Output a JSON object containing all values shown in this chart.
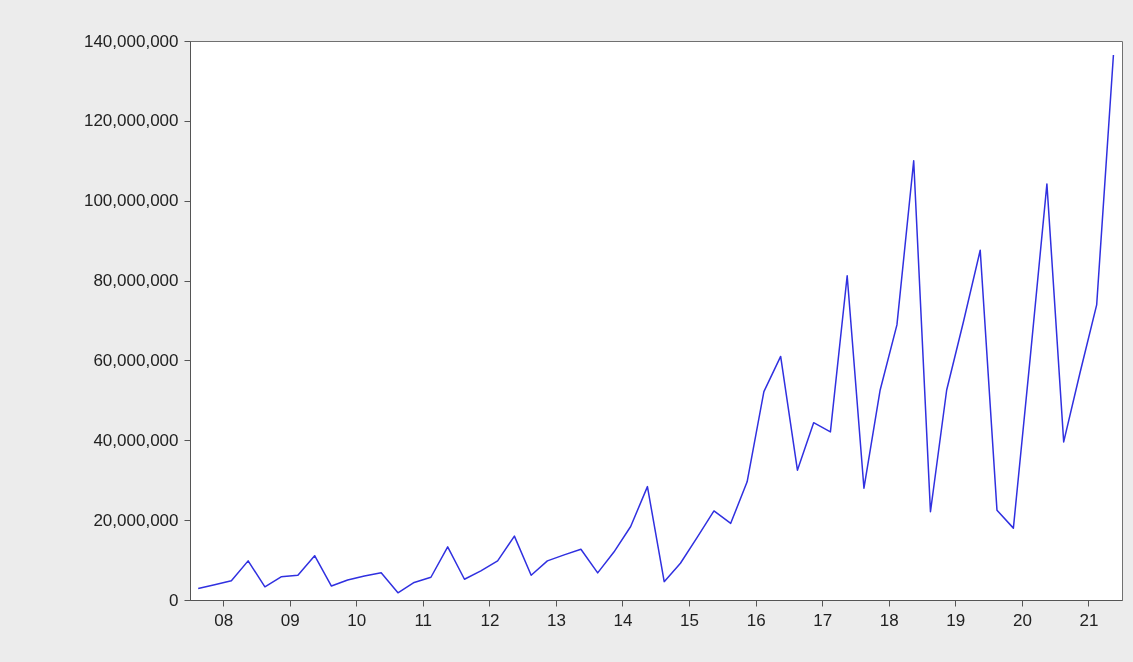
{
  "chart_data": {
    "type": "line",
    "x": [
      "2008-02-15",
      "2008-05-15",
      "2008-08-15",
      "2008-11-15",
      "2009-02-15",
      "2009-05-15",
      "2009-08-15",
      "2009-11-15",
      "2010-02-15",
      "2010-05-15",
      "2010-08-15",
      "2010-11-15",
      "2011-02-15",
      "2011-05-15",
      "2011-08-15",
      "2011-11-15",
      "2012-02-15",
      "2012-05-15",
      "2012-08-15",
      "2012-11-15",
      "2013-02-15",
      "2013-05-15",
      "2013-08-15",
      "2013-11-15",
      "2014-02-15",
      "2014-05-15",
      "2014-08-15",
      "2014-11-15",
      "2015-02-15",
      "2015-05-15",
      "2015-08-15",
      "2015-11-15",
      "2016-02-15",
      "2016-05-15",
      "2016-08-15",
      "2016-11-15",
      "2017-02-15",
      "2017-05-15",
      "2017-08-15",
      "2017-11-15",
      "2018-02-15",
      "2018-05-15",
      "2018-08-15",
      "2018-11-15",
      "2019-02-15",
      "2019-05-15",
      "2019-08-15",
      "2019-11-15",
      "2020-02-15",
      "2020-05-15",
      "2020-08-15",
      "2020-11-15",
      "2021-02-15",
      "2021-05-15",
      "2021-08-15",
      "2021-11-15"
    ],
    "series": [
      {
        "color": "#3030e0",
        "values": [
          2900000,
          3800000,
          4800000,
          9800000,
          3300000,
          5800000,
          6200000,
          11100000,
          3500000,
          5000000,
          6000000,
          6800000,
          1800000,
          4400000,
          5700000,
          13300000,
          5200000,
          7300000,
          9800000,
          16000000,
          6200000,
          9800000,
          11300000,
          12700000,
          6800000,
          12000000,
          18400000,
          28400000,
          4600000,
          9200000,
          15700000,
          22300000,
          19200000,
          29600000,
          52200000,
          61000000,
          32500000,
          44400000,
          42100000,
          81200000,
          28000000,
          52600000,
          68900000,
          110000000,
          22100000,
          52600000,
          69700000,
          87600000,
          22500000,
          18000000,
          60500000,
          104200000,
          39600000,
          56800000,
          73900000,
          136500000
        ]
      }
    ],
    "xlim": [
      "2008-01-01",
      "2022-01-01"
    ],
    "xticks": [
      {
        "value": "2008-07",
        "label": "08"
      },
      {
        "value": "2009-07",
        "label": "09"
      },
      {
        "value": "2010-07",
        "label": "10"
      },
      {
        "value": "2011-07",
        "label": "11"
      },
      {
        "value": "2012-07",
        "label": "12"
      },
      {
        "value": "2013-07",
        "label": "13"
      },
      {
        "value": "2014-07",
        "label": "14"
      },
      {
        "value": "2015-07",
        "label": "15"
      },
      {
        "value": "2016-07",
        "label": "16"
      },
      {
        "value": "2017-07",
        "label": "17"
      },
      {
        "value": "2018-07",
        "label": "18"
      },
      {
        "value": "2019-07",
        "label": "19"
      },
      {
        "value": "2020-07",
        "label": "20"
      },
      {
        "value": "2021-07",
        "label": "21"
      }
    ],
    "ylim": [
      0,
      140000000
    ],
    "yticks": [
      0,
      {
        "value": 20000000,
        "label": "20,000,000"
      },
      {
        "value": 40000000,
        "label": "40,000,000"
      },
      {
        "value": 60000000,
        "label": "60,000,000"
      },
      {
        "value": 80000000,
        "label": "80,000,000"
      },
      {
        "value": 100000000,
        "label": "100,000,000"
      },
      {
        "value": 120000000,
        "label": "120,000,000"
      },
      {
        "value": 140000000,
        "label": "140,000,000"
      }
    ],
    "grid": false,
    "marker": "none",
    "line_style": "solid"
  }
}
